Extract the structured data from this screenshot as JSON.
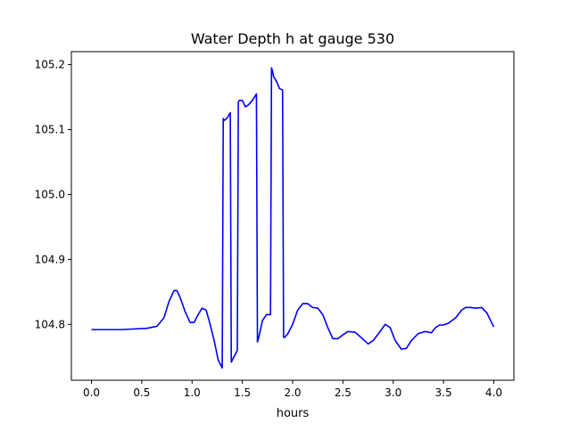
{
  "chart_data": {
    "type": "line",
    "title": "Water Depth h at gauge 530",
    "xlabel": "hours",
    "ylabel": "",
    "xlim": [
      -0.2,
      4.2
    ],
    "ylim": [
      104.714,
      105.22
    ],
    "x_ticks": [
      0.0,
      0.5,
      1.0,
      1.5,
      2.0,
      2.5,
      3.0,
      3.5,
      4.0
    ],
    "x_tick_labels": [
      "0.0",
      "0.5",
      "1.0",
      "1.5",
      "2.0",
      "2.5",
      "3.0",
      "3.5",
      "4.0"
    ],
    "y_ticks": [
      104.8,
      104.9,
      105.0,
      105.1,
      105.2
    ],
    "y_tick_labels": [
      "104.8",
      "104.9",
      "105.0",
      "105.1",
      "105.2"
    ],
    "grid": false,
    "legend": "none",
    "series": [
      {
        "color": "#0000ff",
        "x": [
          0.0,
          0.3,
          0.55,
          0.65,
          0.72,
          0.77,
          0.82,
          0.85,
          0.88,
          0.93,
          0.98,
          1.02,
          1.06,
          1.1,
          1.14,
          1.18,
          1.22,
          1.26,
          1.3,
          1.31,
          1.32,
          1.35,
          1.38,
          1.39,
          1.4,
          1.45,
          1.46,
          1.47,
          1.5,
          1.53,
          1.56,
          1.6,
          1.64,
          1.65,
          1.66,
          1.7,
          1.74,
          1.78,
          1.79,
          1.8,
          1.81,
          1.84,
          1.87,
          1.9,
          1.91,
          1.92,
          1.95,
          2.0,
          2.05,
          2.1,
          2.15,
          2.2,
          2.25,
          2.3,
          2.35,
          2.4,
          2.45,
          2.5,
          2.55,
          2.62,
          2.68,
          2.75,
          2.8,
          2.85,
          2.92,
          2.97,
          3.02,
          3.08,
          3.13,
          3.18,
          3.25,
          3.32,
          3.38,
          3.42,
          3.46,
          3.5,
          3.55,
          3.62,
          3.68,
          3.72,
          3.77,
          3.82,
          3.88,
          3.93,
          4.0
        ],
        "y": [
          104.792,
          104.792,
          104.794,
          104.797,
          104.81,
          104.835,
          104.852,
          104.852,
          104.842,
          104.82,
          104.803,
          104.803,
          104.815,
          104.825,
          104.822,
          104.8,
          104.775,
          104.745,
          104.733,
          105.117,
          105.114,
          105.118,
          105.126,
          104.742,
          104.745,
          104.76,
          105.142,
          105.145,
          105.145,
          105.135,
          105.138,
          105.145,
          105.155,
          104.773,
          104.778,
          104.806,
          104.815,
          104.815,
          105.195,
          105.19,
          105.182,
          105.174,
          105.163,
          105.161,
          104.78,
          104.78,
          104.785,
          104.8,
          104.822,
          104.832,
          104.832,
          104.826,
          104.825,
          104.815,
          104.795,
          104.778,
          104.778,
          104.784,
          104.789,
          104.788,
          104.78,
          104.77,
          104.775,
          104.785,
          104.8,
          104.795,
          104.775,
          104.762,
          104.763,
          104.775,
          104.786,
          104.789,
          104.787,
          104.795,
          104.799,
          104.799,
          104.802,
          104.81,
          104.822,
          104.826,
          104.826,
          104.825,
          104.826,
          104.818,
          104.796
        ]
      }
    ]
  }
}
